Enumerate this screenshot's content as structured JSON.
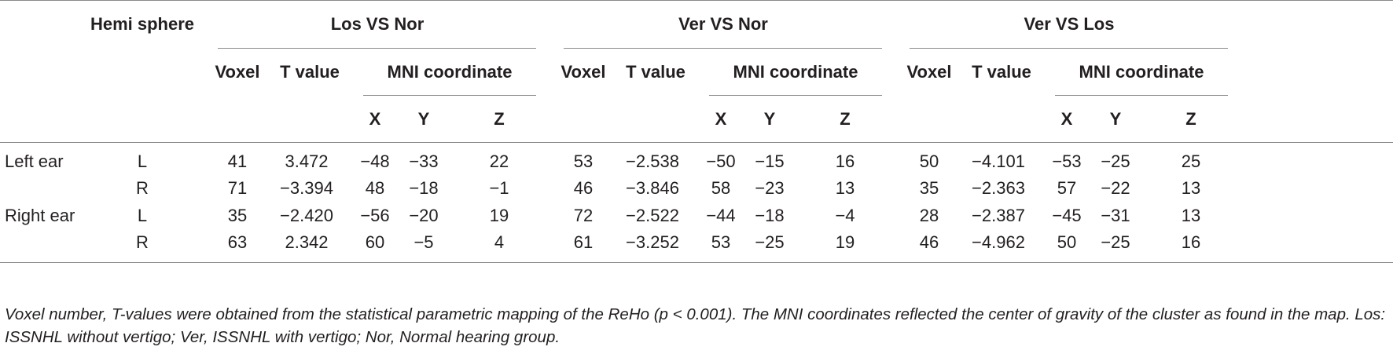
{
  "table": {
    "hemisphere_header": "Hemi sphere",
    "groups": [
      {
        "title": "Los VS Nor",
        "voxel": "Voxel",
        "tvalue": "T value",
        "mni": "MNI coordinate",
        "x": "X",
        "y": "Y",
        "z": "Z"
      },
      {
        "title": "Ver VS Nor",
        "voxel": "Voxel",
        "tvalue": "T value",
        "mni": "MNI coordinate",
        "x": "X",
        "y": "Y",
        "z": "Z"
      },
      {
        "title": "Ver VS Los",
        "voxel": "Voxel",
        "tvalue": "T value",
        "mni": "MNI coordinate",
        "x": "X",
        "y": "Y",
        "z": "Z"
      }
    ],
    "rows": [
      {
        "region": "Left ear",
        "side": "L",
        "cells": [
          "41",
          "3.472",
          "−48",
          "−33",
          "22",
          "53",
          "−2.538",
          "−50",
          "−15",
          "16",
          "50",
          "−4.101",
          "−53",
          "−25",
          "25"
        ]
      },
      {
        "region": "",
        "side": "R",
        "cells": [
          "71",
          "−3.394",
          "48",
          "−18",
          "−1",
          "46",
          "−3.846",
          "58",
          "−23",
          "13",
          "35",
          "−2.363",
          "57",
          "−22",
          "13"
        ]
      },
      {
        "region": "Right ear",
        "side": "L",
        "cells": [
          "35",
          "−2.420",
          "−56",
          "−20",
          "19",
          "72",
          "−2.522",
          "−44",
          "−18",
          "−4",
          "28",
          "−2.387",
          "−45",
          "−31",
          "13"
        ]
      },
      {
        "region": "",
        "side": "R",
        "cells": [
          "63",
          "2.342",
          "60",
          "−5",
          "4",
          "61",
          "−3.252",
          "53",
          "−25",
          "19",
          "46",
          "−4.962",
          "50",
          "−25",
          "16"
        ]
      }
    ]
  },
  "footnote": "Voxel number, T-values were obtained from the statistical parametric mapping of the ReHo (p < 0.001). The MNI coordinates reflected the center of gravity of the cluster as found in the map. Los: ISSNHL without vertigo; Ver, ISSNHL with vertigo; Nor, Normal hearing group."
}
